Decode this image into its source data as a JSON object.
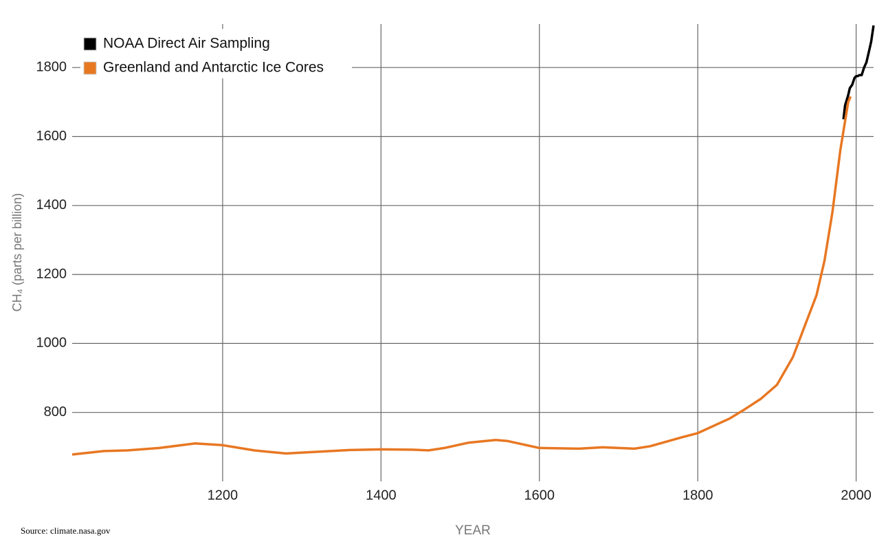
{
  "chart_data": {
    "type": "line",
    "x_label": "YEAR",
    "y_label": "CH₄ (parts per billion)",
    "source": "Source: climate.nasa.gov",
    "xlim": [
      1010,
      2022
    ],
    "xticks": [
      1200,
      1400,
      1600,
      1800,
      2000
    ],
    "ylim": [
      600,
      1926
    ],
    "yticks": [
      800,
      1000,
      1200,
      1400,
      1600,
      1800
    ],
    "grid": true,
    "legend": "top-left",
    "series": [
      {
        "name": "NOAA Direct Air Sampling",
        "color": "#000000",
        "x": [
          1984,
          1986,
          1990,
          1992,
          1995,
          1998,
          2000,
          2002,
          2004,
          2007,
          2010,
          2013,
          2016,
          2019,
          2022
        ],
        "values": [
          1650,
          1690,
          1720,
          1740,
          1750,
          1770,
          1775,
          1775,
          1778,
          1778,
          1800,
          1815,
          1845,
          1875,
          1922
        ]
      },
      {
        "name": "Greenland and Antarctic Ice Cores",
        "color": "#e87722",
        "x": [
          1010,
          1050,
          1080,
          1120,
          1165,
          1200,
          1240,
          1280,
          1320,
          1360,
          1400,
          1440,
          1460,
          1480,
          1510,
          1545,
          1560,
          1600,
          1650,
          1680,
          1720,
          1740,
          1780,
          1800,
          1840,
          1860,
          1880,
          1900,
          1920,
          1940,
          1950,
          1960,
          1970,
          1980,
          1990,
          1993
        ],
        "values": [
          678,
          688,
          690,
          697,
          710,
          705,
          690,
          681,
          686,
          691,
          693,
          692,
          690,
          697,
          712,
          720,
          717,
          697,
          695,
          699,
          695,
          702,
          728,
          740,
          782,
          810,
          840,
          880,
          960,
          1080,
          1140,
          1240,
          1380,
          1560,
          1700,
          1716
        ]
      }
    ]
  }
}
